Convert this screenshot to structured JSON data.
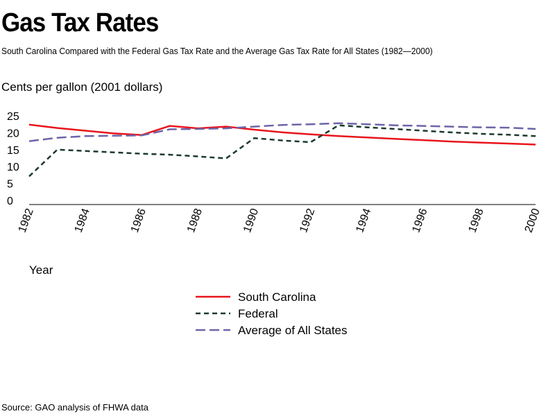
{
  "chart_data": {
    "type": "line",
    "title": "Gas Tax Rates",
    "subtitle": "South Carolina Compared with the Federal Gas Tax Rate and the Average Gas Tax Rate for All States (1982—2000)",
    "ylabel": "Cents per gallon (2001 dollars)",
    "xlabel": "Year",
    "source": "Source: GAO analysis of FHWA data",
    "x": [
      1982,
      1983,
      1984,
      1985,
      1986,
      1987,
      1988,
      1989,
      1990,
      1991,
      1992,
      1993,
      1994,
      1995,
      1996,
      1997,
      1998,
      1999,
      2000
    ],
    "xticks": [
      "1982",
      "1984",
      "1986",
      "1988",
      "1990",
      "1992",
      "1994",
      "1996",
      "1998",
      "2000"
    ],
    "yticks": [
      "0",
      "5",
      "10",
      "15",
      "20",
      "25"
    ],
    "ylim": [
      0,
      25
    ],
    "xlim": [
      1982,
      2000
    ],
    "legend_position": "bottom-center",
    "series": [
      {
        "name": "South Carolina",
        "color": "#e8141c",
        "style": "solid",
        "values": [
          22.4,
          21.4,
          20.6,
          19.8,
          19.3,
          22.0,
          21.3,
          21.8,
          20.9,
          20.1,
          19.5,
          19.0,
          18.6,
          18.2,
          17.8,
          17.4,
          17.1,
          16.8,
          16.5
        ]
      },
      {
        "name": "Federal",
        "color": "#1a3a2a",
        "style": "dashed",
        "values": [
          7.1,
          15.0,
          14.6,
          14.2,
          13.8,
          13.5,
          13.0,
          12.4,
          18.4,
          17.7,
          17.2,
          22.2,
          21.6,
          21.1,
          20.6,
          20.1,
          19.7,
          19.4,
          19.0
        ]
      },
      {
        "name": "Average of All States",
        "color": "#6b65a8",
        "style": "longdash",
        "values": [
          17.5,
          18.5,
          19.0,
          19.1,
          19.2,
          21.0,
          21.1,
          21.3,
          21.8,
          22.3,
          22.5,
          22.8,
          22.5,
          22.2,
          22.0,
          21.8,
          21.6,
          21.5,
          21.1
        ]
      }
    ]
  }
}
